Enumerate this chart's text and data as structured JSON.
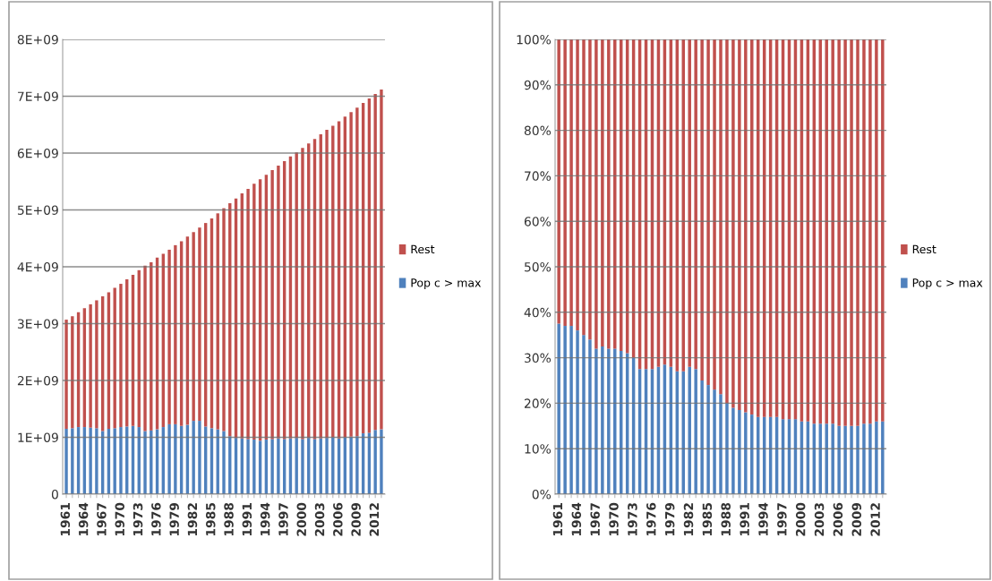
{
  "chart_data": [
    {
      "type": "bar",
      "stacked": true,
      "grid": "y",
      "legend": "right",
      "categories": [
        "1961",
        null,
        null,
        "1964",
        null,
        null,
        "1967",
        null,
        null,
        "1970",
        null,
        null,
        "1973",
        null,
        null,
        "1976",
        null,
        null,
        "1979",
        null,
        null,
        "1982",
        null,
        null,
        "1985",
        null,
        null,
        "1988",
        null,
        null,
        "1991",
        null,
        null,
        "1994",
        null,
        null,
        "1997",
        null,
        null,
        "2000",
        null,
        null,
        "2003",
        null,
        null,
        "2006",
        null,
        null,
        "2009",
        null,
        null,
        "2012",
        null
      ],
      "ylim": [
        0,
        8000000000.0
      ],
      "yticks": [
        0,
        {
          "value": 1000000000.0,
          "label": "1E+09"
        },
        {
          "value": 2000000000.0,
          "label": "2E+09"
        },
        {
          "value": 3000000000.0,
          "label": "3E+09"
        },
        {
          "value": 4000000000.0,
          "label": "4E+09"
        },
        {
          "value": 5000000000.0,
          "label": "5E+09"
        },
        {
          "value": 6000000000.0,
          "label": "6E+09"
        },
        {
          "value": 7000000000.0,
          "label": "7E+09"
        },
        {
          "value": 8000000000.0,
          "label": "8E+09"
        }
      ],
      "series": [
        {
          "name": "Pop c > max",
          "color": "#4f81bd",
          "values": [
            1150000000.0,
            1160000000.0,
            1180000000.0,
            1180000000.0,
            1170000000.0,
            1160000000.0,
            1110000000.0,
            1150000000.0,
            1160000000.0,
            1180000000.0,
            1190000000.0,
            1200000000.0,
            1180000000.0,
            1110000000.0,
            1120000000.0,
            1140000000.0,
            1180000000.0,
            1230000000.0,
            1230000000.0,
            1200000000.0,
            1220000000.0,
            1290000000.0,
            1290000000.0,
            1190000000.0,
            1160000000.0,
            1140000000.0,
            1110000000.0,
            1020000000.0,
            990000000.0,
            980000000.0,
            970000000.0,
            960000000.0,
            940000000.0,
            960000000.0,
            970000000.0,
            980000000.0,
            970000000.0,
            980000000.0,
            990000000.0,
            970000000.0,
            990000000.0,
            970000000.0,
            980000000.0,
            990000000.0,
            1000000000.0,
            980000000.0,
            1000000000.0,
            1010000000.0,
            1020000000.0,
            1070000000.0,
            1080000000.0,
            1130000000.0,
            1140000000.0
          ]
        },
        {
          "name": "Rest",
          "color": "#c0504d",
          "values": [
            1920000000.0,
            1970000000.0,
            2020000000.0,
            2090000000.0,
            2170000000.0,
            2250000000.0,
            2370000000.0,
            2400000000.0,
            2470000000.0,
            2520000000.0,
            2590000000.0,
            2660000000.0,
            2760000000.0,
            2910000000.0,
            2960000000.0,
            3020000000.0,
            3050000000.0,
            3070000000.0,
            3150000000.0,
            3250000000.0,
            3310000000.0,
            3320000000.0,
            3400000000.0,
            3580000000.0,
            3690000000.0,
            3800000000.0,
            3920000000.0,
            4100000000.0,
            4210000000.0,
            4310000000.0,
            4400000000.0,
            4500000000.0,
            4600000000.0,
            4660000000.0,
            4730000000.0,
            4800000000.0,
            4890000000.0,
            4960000000.0,
            5020000000.0,
            5120000000.0,
            5180000000.0,
            5280000000.0,
            5350000000.0,
            5420000000.0,
            5480000000.0,
            5580000000.0,
            5640000000.0,
            5710000000.0,
            5780000000.0,
            5810000000.0,
            5880000000.0,
            5910000000.0,
            5980000000.0
          ]
        }
      ]
    },
    {
      "type": "bar",
      "stacked": true,
      "grid": "y",
      "legend": "right",
      "categories": [
        "1961",
        null,
        null,
        "1964",
        null,
        null,
        "1967",
        null,
        null,
        "1970",
        null,
        null,
        "1973",
        null,
        null,
        "1976",
        null,
        null,
        "1979",
        null,
        null,
        "1982",
        null,
        null,
        "1985",
        null,
        null,
        "1988",
        null,
        null,
        "1991",
        null,
        null,
        "1994",
        null,
        null,
        "1997",
        null,
        null,
        "2000",
        null,
        null,
        "2003",
        null,
        null,
        "2006",
        null,
        null,
        "2009",
        null,
        null,
        "2012",
        null
      ],
      "ylim": [
        0,
        100
      ],
      "yticks": [
        {
          "value": 0,
          "label": "0%"
        },
        {
          "value": 10,
          "label": "10%"
        },
        {
          "value": 20,
          "label": "20%"
        },
        {
          "value": 30,
          "label": "30%"
        },
        {
          "value": 40,
          "label": "40%"
        },
        {
          "value": 50,
          "label": "50%"
        },
        {
          "value": 60,
          "label": "60%"
        },
        {
          "value": 70,
          "label": "70%"
        },
        {
          "value": 80,
          "label": "80%"
        },
        {
          "value": 90,
          "label": "90%"
        },
        {
          "value": 100,
          "label": "100%"
        }
      ],
      "series": [
        {
          "name": "Pop c > max",
          "color": "#4f81bd",
          "values": [
            37.5,
            37,
            37,
            36,
            35,
            34,
            32,
            32.5,
            32,
            32,
            31.5,
            31,
            30,
            27.5,
            27.5,
            27.5,
            28,
            28.5,
            28,
            27,
            27,
            28,
            27.5,
            25,
            24,
            23,
            22,
            20,
            19,
            18.5,
            18,
            17.5,
            17,
            17,
            17,
            17,
            16.5,
            16.5,
            16.5,
            16,
            16,
            15.5,
            15.5,
            15.5,
            15.5,
            15,
            15,
            15,
            15,
            15.5,
            15.5,
            16,
            16
          ]
        },
        {
          "name": "Rest",
          "color": "#c0504d",
          "values": [
            62.5,
            63,
            63,
            64,
            65,
            66,
            68,
            67.5,
            68,
            68,
            68.5,
            69,
            70,
            72.5,
            72.5,
            72.5,
            72,
            71.5,
            72,
            73,
            73,
            72,
            72.5,
            75,
            76,
            77,
            78,
            80,
            81,
            81.5,
            82,
            82.5,
            83,
            83,
            83,
            83,
            83.5,
            83.5,
            83.5,
            84,
            84,
            84.5,
            84.5,
            84.5,
            84.5,
            85,
            85,
            85,
            85,
            84.5,
            84.5,
            84,
            84
          ]
        }
      ]
    }
  ]
}
